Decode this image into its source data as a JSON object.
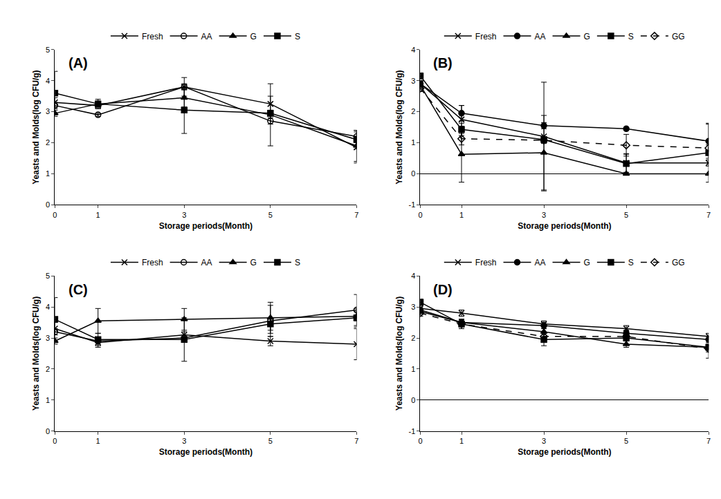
{
  "chart_data": [
    {
      "type": "line",
      "title": "(A)",
      "x_label": "Storage periods(Month)",
      "y_label": "Yeasts and Molds(log CFU/g)",
      "x": [
        0,
        1,
        3,
        5,
        7
      ],
      "xlim": [
        0,
        7
      ],
      "xticks": [
        0,
        1,
        3,
        5,
        7
      ],
      "ylim": [
        0,
        5
      ],
      "yticks": [
        0,
        1,
        2,
        3,
        4,
        5
      ],
      "grid": false,
      "legend": "top",
      "series": [
        {
          "name": "Fresh",
          "color": "#000000",
          "marker": "x",
          "line_style": "solid",
          "values": [
            3.3,
            3.2,
            3.8,
            3.25,
            1.85
          ],
          "errors": [
            0.15,
            0.1,
            0.3,
            0.65,
            0.5
          ]
        },
        {
          "name": "AA",
          "color": "#000000",
          "marker": "circle-open",
          "line_style": "solid",
          "values": [
            3.2,
            2.9,
            3.8,
            2.7,
            2.2
          ],
          "errors": [
            0.1,
            0.05,
            0.1,
            0.8,
            0.2
          ]
        },
        {
          "name": "G",
          "color": "#000000",
          "marker": "triangle",
          "line_style": "solid",
          "values": [
            2.95,
            3.25,
            3.45,
            2.9,
            1.9
          ],
          "errors": [
            0.1,
            0.1,
            0.3,
            0.1,
            0.5
          ]
        },
        {
          "name": "S",
          "color": "#000000",
          "marker": "square",
          "line_style": "solid",
          "values": [
            3.6,
            3.25,
            3.05,
            2.95,
            2.1
          ],
          "errors": [
            0.7,
            0.15,
            0.75,
            0.1,
            0.3
          ]
        }
      ]
    },
    {
      "type": "line",
      "title": "(B)",
      "x_label": "Storage periods(Month)",
      "y_label": "Yeasts and Molds(log CFU/g)",
      "x": [
        0,
        1,
        3,
        5,
        7
      ],
      "xlim": [
        0,
        7
      ],
      "xticks": [
        0,
        1,
        3,
        5,
        7
      ],
      "ylim": [
        -1,
        4
      ],
      "yticks": [
        -1,
        0,
        1,
        2,
        3,
        4
      ],
      "grid": false,
      "legend": "top",
      "series": [
        {
          "name": "Fresh",
          "color": "#000000",
          "marker": "x",
          "line_style": "solid",
          "values": [
            2.9,
            1.75,
            1.2,
            0.35,
            0.35
          ],
          "errors": [
            0.1,
            0.45,
            1.75,
            0.3,
            0.1
          ]
        },
        {
          "name": "AA",
          "color": "#000000",
          "marker": "circle",
          "line_style": "solid",
          "values": [
            2.9,
            1.95,
            1.55,
            1.45,
            1.05
          ],
          "errors": [
            0.1,
            0.25,
            0.1,
            0.05,
            0.55
          ]
        },
        {
          "name": "G",
          "color": "#000000",
          "marker": "triangle",
          "line_style": "solid",
          "values": [
            2.85,
            0.63,
            0.68,
            0,
            0
          ],
          "errors": [
            0.1,
            0.9,
            1.2,
            0,
            0
          ]
        },
        {
          "name": "S",
          "color": "#000000",
          "marker": "square",
          "line_style": "solid",
          "values": [
            3.15,
            1.43,
            1.1,
            0.33,
            0.68
          ],
          "errors": [
            0.1,
            0.2,
            0.1,
            0.3,
            0.95
          ]
        },
        {
          "name": "GG",
          "color": "#000000",
          "marker": "diamond-open",
          "line_style": "dash",
          "values": [
            2.75,
            1.13,
            1.08,
            0.92,
            0.83
          ],
          "errors": [
            0.1,
            0.2,
            0.1,
            0.35,
            0.1
          ]
        }
      ]
    },
    {
      "type": "line",
      "title": "(C)",
      "x_label": "Storage periods(Month)",
      "y_label": "Yeasts and Molds(log CFU/g)",
      "x": [
        0,
        1,
        3,
        5,
        7
      ],
      "xlim": [
        0,
        7
      ],
      "xticks": [
        0,
        1,
        3,
        5,
        7
      ],
      "ylim": [
        0,
        5
      ],
      "yticks": [
        0,
        1,
        2,
        3,
        4,
        5
      ],
      "grid": false,
      "legend": "top",
      "series": [
        {
          "name": "Fresh",
          "color": "#000000",
          "marker": "x",
          "line_style": "solid",
          "values": [
            3.3,
            2.85,
            3.1,
            2.9,
            2.8
          ],
          "errors": [
            0.2,
            0.15,
            0.1,
            0.15,
            0.5
          ]
        },
        {
          "name": "AA",
          "color": "#000000",
          "marker": "circle-open",
          "line_style": "solid",
          "values": [
            3.2,
            2.9,
            3.0,
            3.55,
            3.9
          ],
          "errors": [
            0.1,
            0.1,
            0.1,
            0.5,
            0.5
          ]
        },
        {
          "name": "G",
          "color": "#000000",
          "marker": "triangle",
          "line_style": "solid",
          "values": [
            2.9,
            3.55,
            3.6,
            3.65,
            3.7
          ],
          "errors": [
            0.1,
            0.4,
            0.35,
            0.5,
            0.15
          ]
        },
        {
          "name": "S",
          "color": "#000000",
          "marker": "square",
          "line_style": "solid",
          "values": [
            3.6,
            2.95,
            2.95,
            3.45,
            3.65
          ],
          "errors": [
            0.7,
            0.2,
            0.7,
            0.2,
            0.3
          ]
        }
      ]
    },
    {
      "type": "line",
      "title": "(D)",
      "x_label": "Storage periods(Month)",
      "y_label": "Yeasts and Molds(log CFU/g)",
      "x": [
        0,
        1,
        3,
        5,
        7
      ],
      "xlim": [
        0,
        7
      ],
      "xticks": [
        0,
        1,
        3,
        5,
        7
      ],
      "ylim": [
        -1,
        4
      ],
      "yticks": [
        -1,
        0,
        1,
        2,
        3,
        4
      ],
      "grid": false,
      "legend": "top",
      "series": [
        {
          "name": "Fresh",
          "color": "#000000",
          "marker": "x",
          "line_style": "solid",
          "values": [
            2.95,
            2.8,
            2.45,
            2.3,
            2.05
          ],
          "errors": [
            0.1,
            0.1,
            0.1,
            0.1,
            0.1
          ]
        },
        {
          "name": "AA",
          "color": "#000000",
          "marker": "circle",
          "line_style": "solid",
          "values": [
            2.9,
            2.5,
            2.4,
            2.15,
            1.95
          ],
          "errors": [
            0.1,
            0.1,
            0.1,
            0.1,
            0.1
          ]
        },
        {
          "name": "G",
          "color": "#000000",
          "marker": "triangle",
          "line_style": "solid",
          "values": [
            2.85,
            2.5,
            2.2,
            1.8,
            1.7
          ],
          "errors": [
            0.1,
            0.1,
            0.1,
            0.1,
            0.1
          ]
        },
        {
          "name": "S",
          "color": "#000000",
          "marker": "square",
          "line_style": "solid",
          "values": [
            3.15,
            2.45,
            1.95,
            2.0,
            1.7
          ],
          "errors": [
            0.1,
            0.15,
            0.2,
            0.1,
            0.35
          ]
        },
        {
          "name": "GG",
          "color": "#000000",
          "marker": "diamond-open",
          "line_style": "dash",
          "values": [
            2.8,
            2.45,
            2.05,
            2.05,
            1.65
          ],
          "errors": [
            0.1,
            0.1,
            0.1,
            0.1,
            0.1
          ]
        }
      ]
    }
  ]
}
